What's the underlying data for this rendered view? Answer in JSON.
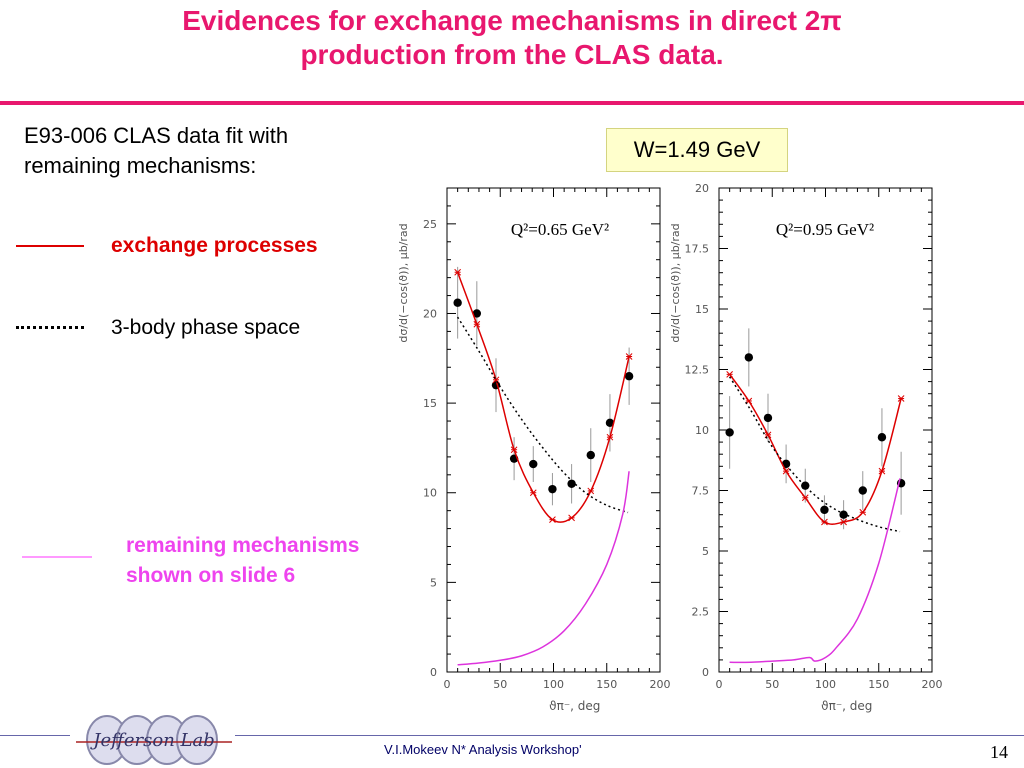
{
  "slide": {
    "title_line1": "Evidences for exchange mechanisms in direct 2π",
    "title_line2": "production from the CLAS data.",
    "intro_line1": "E93-006 CLAS data fit with",
    "intro_line2": "remaining mechanisms:",
    "w_label": "W=1.49 GeV",
    "legend": {
      "exchange": "exchange processes",
      "phase_space": "3-body phase space",
      "remaining_line1": "remaining mechanisms",
      "remaining_line2": "shown on slide 6"
    },
    "footer": "V.I.Mokeev  N* Analysis Workshop'",
    "page_number": "14",
    "logo_text": "Jefferson Lab"
  },
  "colors": {
    "title": "#e8176e",
    "exchange": "#dd0000",
    "phase_space": "#000000",
    "remaining": "#dd33dd",
    "w_box": "#ffffcc"
  },
  "chart_data": [
    {
      "type": "scatter",
      "panel_label": "Q²=0.65 GeV²",
      "xlabel": "ϑπ⁻, deg",
      "ylabel": "dσ/d(−cos(ϑ)), μb/rad",
      "xlim": [
        0,
        200
      ],
      "ylim": [
        0,
        27
      ],
      "xticks": [
        0,
        50,
        100,
        150,
        200
      ],
      "yticks": [
        0,
        5,
        10,
        15,
        20,
        25
      ],
      "ytick_labels": [
        "0",
        "5",
        "10",
        "15",
        "20",
        "25"
      ],
      "series": [
        {
          "kind": "data",
          "x": [
            10,
            28,
            46,
            63,
            81,
            99,
            117,
            135,
            153,
            171
          ],
          "y": [
            20.6,
            20.0,
            16.0,
            11.9,
            11.6,
            10.2,
            10.5,
            12.1,
            13.9,
            16.5
          ],
          "err": [
            2.0,
            1.8,
            1.5,
            1.2,
            1.0,
            0.9,
            1.1,
            1.5,
            1.6,
            1.6
          ]
        },
        {
          "kind": "exchange-fit",
          "x": [
            10,
            28,
            46,
            63,
            81,
            99,
            117,
            135,
            153,
            171
          ],
          "y": [
            22.3,
            19.4,
            16.3,
            12.4,
            10.0,
            8.5,
            8.6,
            10.1,
            13.1,
            17.6
          ]
        },
        {
          "kind": "phase-space",
          "x": [
            10,
            30,
            50,
            70,
            90,
            110,
            130,
            150,
            170
          ],
          "y": [
            19.8,
            17.9,
            15.9,
            14.1,
            12.5,
            11.1,
            10.0,
            9.3,
            8.9
          ]
        },
        {
          "kind": "remaining",
          "x": [
            10,
            30,
            50,
            70,
            90,
            110,
            130,
            150,
            165,
            171
          ],
          "y": [
            0.4,
            0.5,
            0.65,
            0.9,
            1.4,
            2.3,
            3.8,
            6.0,
            8.8,
            11.2
          ]
        }
      ]
    },
    {
      "type": "scatter",
      "panel_label": "Q²=0.95 GeV²",
      "xlabel": "ϑπ⁻, deg",
      "ylabel": "dσ/d(−cos(ϑ)), μb/rad",
      "xlim": [
        0,
        200
      ],
      "ylim": [
        0,
        20
      ],
      "xticks": [
        0,
        50,
        100,
        150,
        200
      ],
      "yticks": [
        0,
        2.5,
        5,
        7.5,
        10,
        12.5,
        15,
        17.5,
        20
      ],
      "ytick_labels": [
        "0",
        "2.5",
        "5",
        "7.5",
        "10",
        "12.5",
        "15",
        "17.5",
        "20"
      ],
      "series": [
        {
          "kind": "data",
          "x": [
            10,
            28,
            46,
            63,
            81,
            99,
            117,
            135,
            153,
            171
          ],
          "y": [
            9.9,
            13.0,
            10.5,
            8.6,
            7.7,
            6.7,
            6.5,
            7.5,
            9.7,
            7.8
          ],
          "err": [
            1.5,
            1.2,
            1.0,
            0.8,
            0.7,
            0.6,
            0.6,
            0.8,
            1.2,
            1.3
          ]
        },
        {
          "kind": "exchange-fit",
          "x": [
            10,
            28,
            46,
            63,
            81,
            99,
            117,
            135,
            153,
            171
          ],
          "y": [
            12.3,
            11.2,
            9.8,
            8.3,
            7.2,
            6.2,
            6.2,
            6.6,
            8.3,
            11.3
          ]
        },
        {
          "kind": "phase-space",
          "x": [
            10,
            30,
            50,
            70,
            90,
            110,
            130,
            150,
            170
          ],
          "y": [
            12.2,
            10.8,
            9.3,
            8.2,
            7.3,
            6.7,
            6.3,
            6.0,
            5.8
          ]
        },
        {
          "kind": "remaining",
          "x": [
            10,
            30,
            50,
            70,
            85,
            90,
            100,
            110,
            130,
            150,
            170
          ],
          "y": [
            0.4,
            0.4,
            0.45,
            0.5,
            0.6,
            0.45,
            0.6,
            1.0,
            2.2,
            4.5,
            8.0
          ]
        }
      ]
    }
  ]
}
